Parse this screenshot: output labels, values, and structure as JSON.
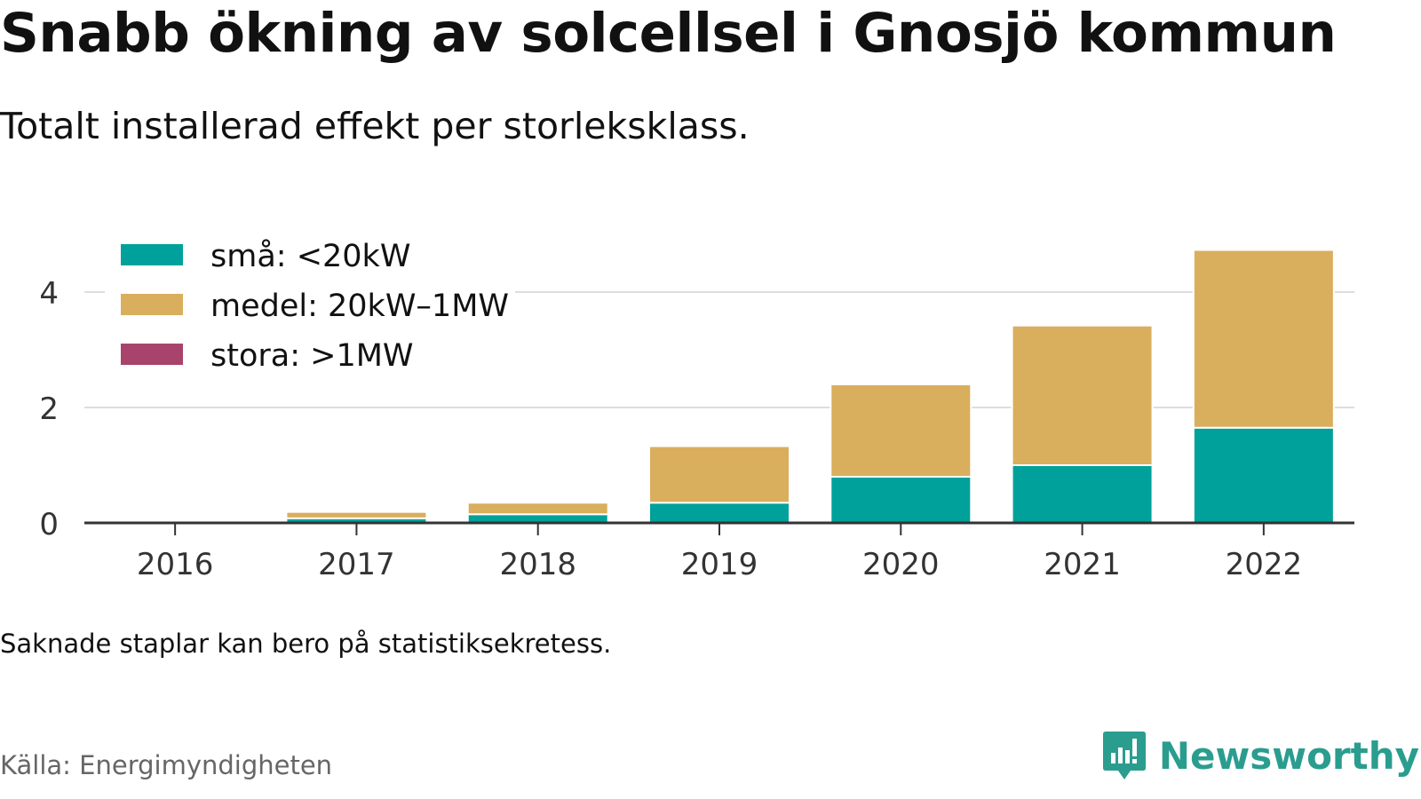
{
  "title": "Snabb ökning av solcellsel i Gnosjö kommun",
  "subtitle": "Totalt installerad effekt per storleksklass.",
  "note": "Saknade staplar kan bero på statistiksekretess.",
  "source": "Källa: Energimyndigheten",
  "brand": {
    "name": "Newsworthy",
    "icon": "newsworthy-logo-icon",
    "color": "#2a9d8f"
  },
  "chart_data": {
    "type": "bar",
    "stacked": true,
    "categories": [
      "2016",
      "2017",
      "2018",
      "2019",
      "2020",
      "2021",
      "2022"
    ],
    "series": [
      {
        "name": "små: <20kW",
        "color": "#00a19a",
        "values": [
          0.03,
          0.08,
          0.15,
          0.35,
          0.8,
          1.0,
          1.65
        ]
      },
      {
        "name": "medel: 20kW–1MW",
        "color": "#d9ae5d",
        "values": [
          0.0,
          0.11,
          0.2,
          0.98,
          1.6,
          2.42,
          3.08
        ]
      },
      {
        "name": "stora: >1MW",
        "color": "#a8436b",
        "values": [
          0,
          0,
          0,
          0,
          0,
          0,
          0
        ]
      }
    ],
    "y_ticks": [
      "0",
      "2",
      "4"
    ],
    "ylim": [
      0,
      4.8
    ],
    "grid": true,
    "legend_position": "top-left"
  }
}
